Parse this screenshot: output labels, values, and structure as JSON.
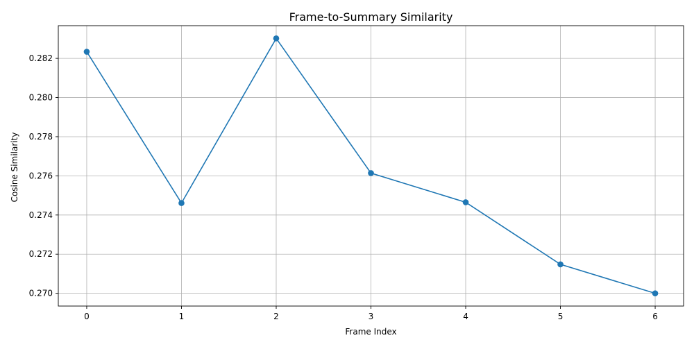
{
  "chart_data": {
    "type": "line",
    "title": "Frame-to-Summary Similarity",
    "xlabel": "Frame Index",
    "ylabel": "Cosine Similarity",
    "x": [
      0,
      1,
      2,
      3,
      4,
      5,
      6
    ],
    "series": [
      {
        "values": [
          0.28234,
          0.27461,
          0.28302,
          0.27614,
          0.27465,
          0.27148,
          0.27
        ]
      }
    ],
    "xlim": [
      -0.3,
      6.3
    ],
    "ylim": [
      0.26935,
      0.28367
    ],
    "xticks": [
      0,
      1,
      2,
      3,
      4,
      5,
      6
    ],
    "xtick_labels": [
      "0",
      "1",
      "2",
      "3",
      "4",
      "5",
      "6"
    ],
    "yticks": [
      0.27,
      0.272,
      0.274,
      0.276,
      0.278,
      0.28,
      0.282
    ],
    "ytick_labels": [
      "0.270",
      "0.272",
      "0.274",
      "0.276",
      "0.278",
      "0.280",
      "0.282"
    ],
    "grid": true,
    "line_color": "#1f77b4",
    "grid_color": "#b0b0b0"
  }
}
